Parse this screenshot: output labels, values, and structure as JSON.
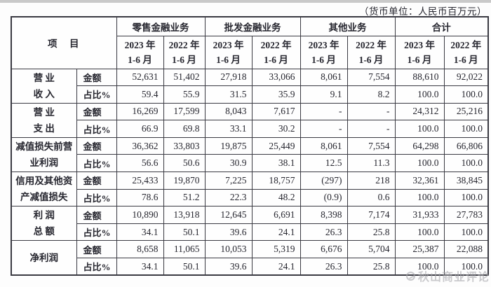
{
  "note": "（货币单位：人民币百万元）",
  "table": {
    "item_header": "项　目",
    "groups": [
      {
        "label": "零售金融业务"
      },
      {
        "label": "批发金融业务"
      },
      {
        "label": "其他业务"
      },
      {
        "label": "合计"
      }
    ],
    "periods": [
      {
        "year": "2023 年",
        "months": "1-6 月"
      },
      {
        "year": "2022 年",
        "months": "1-6 月"
      },
      {
        "year": "2023 年",
        "months": "1-6 月"
      },
      {
        "year": "2022 年",
        "months": "1-6 月"
      },
      {
        "year": "2023 年",
        "months": "1-6 月"
      },
      {
        "year": "2022 年",
        "months": "1-6 月"
      },
      {
        "year": "2023 年",
        "months": "1-6 月"
      },
      {
        "year": "2022 年",
        "months": "1-6 月"
      }
    ],
    "measure_labels": {
      "amount": "金额",
      "ratio": "占比%"
    },
    "rows": [
      {
        "label_lines": [
          "营 业",
          "收 入"
        ],
        "amount": [
          "52,631",
          "51,402",
          "27,918",
          "33,066",
          "8,061",
          "7,554",
          "88,610",
          "92,022"
        ],
        "ratio": [
          "59.4",
          "55.9",
          "31.5",
          "35.9",
          "9.1",
          "8.2",
          "100.0",
          "100.0"
        ]
      },
      {
        "label_lines": [
          "营 业",
          "支 出"
        ],
        "amount": [
          "16,269",
          "17,599",
          "8,043",
          "7,617",
          "-",
          "-",
          "24,312",
          "25,216"
        ],
        "ratio": [
          "66.9",
          "69.8",
          "33.1",
          "30.2",
          "-",
          "-",
          "100.0",
          "100.0"
        ]
      },
      {
        "label_lines": [
          "减值损失前营",
          "业利润"
        ],
        "amount": [
          "36,362",
          "33,803",
          "19,875",
          "25,449",
          "8,061",
          "7,554",
          "64,298",
          "66,806"
        ],
        "ratio": [
          "56.6",
          "50.6",
          "30.9",
          "38.1",
          "12.5",
          "11.3",
          "100.0",
          "100.0"
        ]
      },
      {
        "label_lines": [
          "信用及其他资",
          "产减值损失"
        ],
        "amount": [
          "25,433",
          "19,870",
          "7,225",
          "18,757",
          "(297)",
          "218",
          "32,361",
          "38,845"
        ],
        "ratio": [
          "78.6",
          "51.2",
          "22.3",
          "48.2",
          "(0.9)",
          "0.6",
          "100.0",
          "100.0"
        ]
      },
      {
        "label_lines": [
          "利 润",
          "总 额"
        ],
        "amount": [
          "10,890",
          "13,918",
          "12,645",
          "6,691",
          "8,398",
          "7,174",
          "31,933",
          "27,783"
        ],
        "ratio": [
          "34.1",
          "50.1",
          "39.6",
          "24.1",
          "26.3",
          "25.8",
          "100.0",
          "100.0"
        ]
      },
      {
        "label_lines": [
          "净利润"
        ],
        "amount": [
          "8,658",
          "11,065",
          "10,053",
          "5,319",
          "6,676",
          "5,704",
          "25,387",
          "22,088"
        ],
        "ratio": [
          "34.1",
          "50.1",
          "39.6",
          "24.1",
          "26.3",
          "25.8",
          "100.0",
          "100.0"
        ]
      }
    ]
  },
  "watermark": {
    "text": "秋山商业评论"
  }
}
